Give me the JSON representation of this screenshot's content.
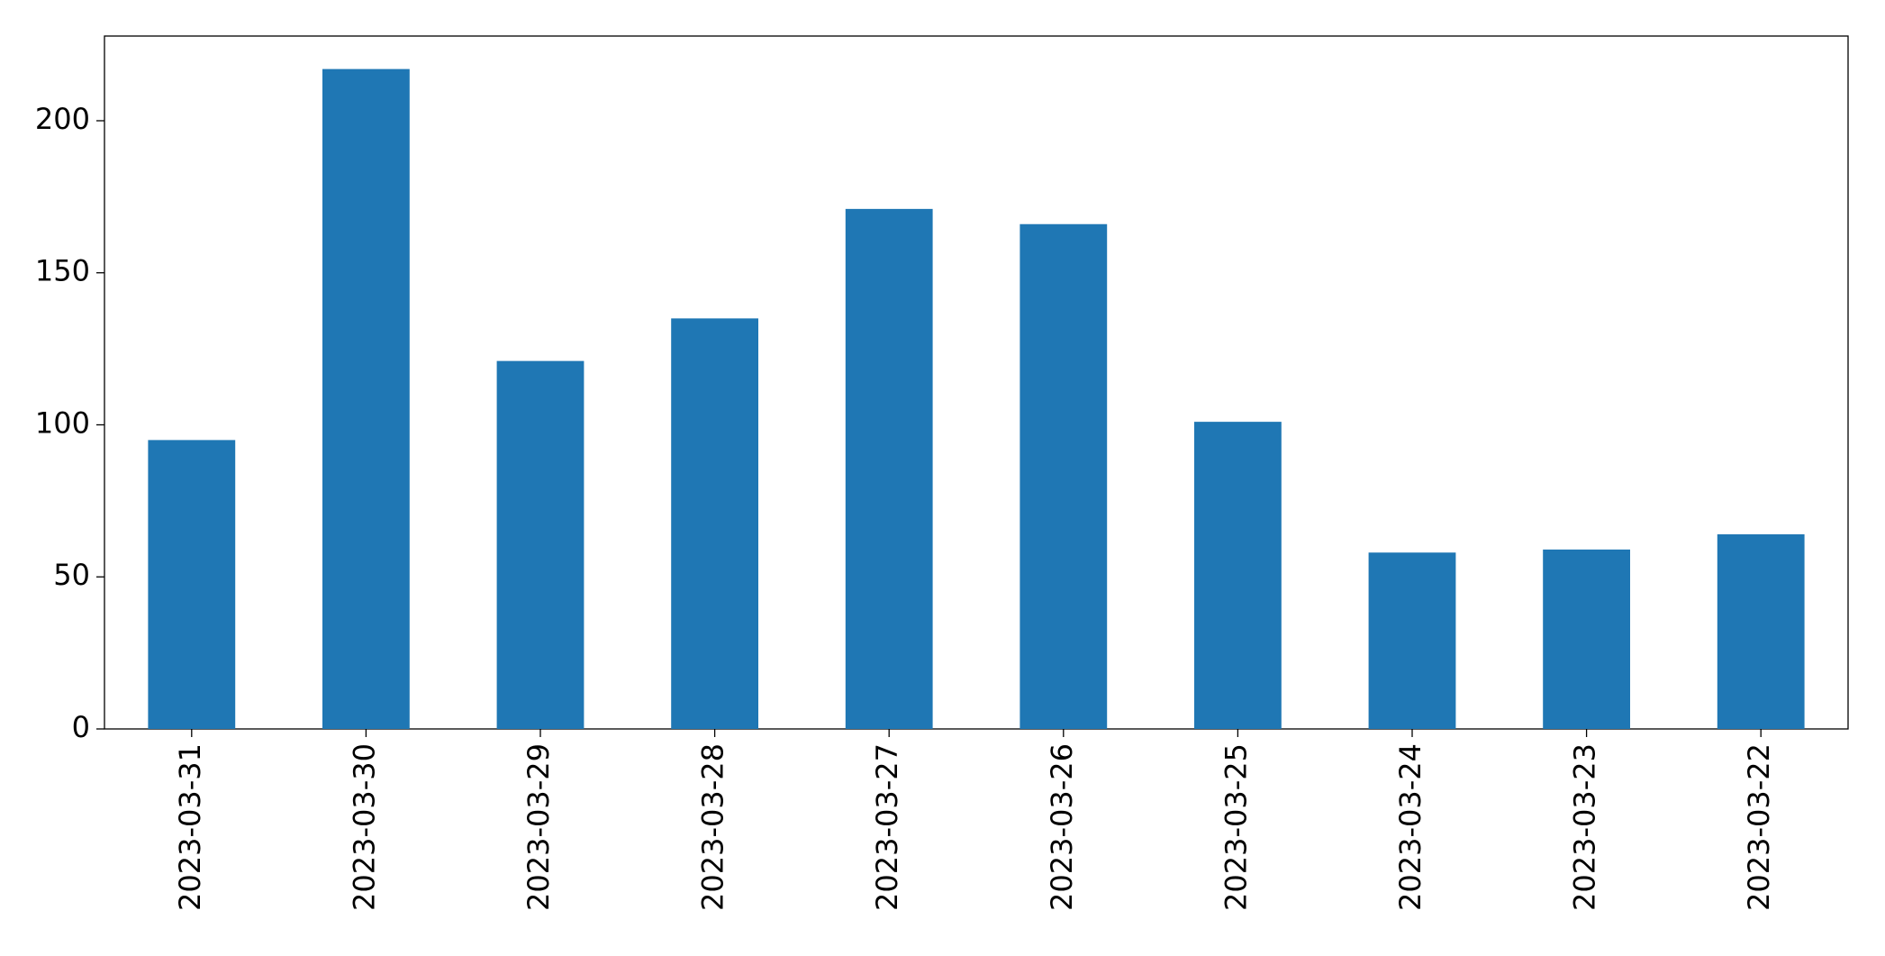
{
  "chart_data": {
    "type": "bar",
    "categories": [
      "2023-03-31",
      "2023-03-30",
      "2023-03-29",
      "2023-03-28",
      "2023-03-27",
      "2023-03-26",
      "2023-03-25",
      "2023-03-24",
      "2023-03-23",
      "2023-03-22"
    ],
    "values": [
      95,
      217,
      121,
      135,
      171,
      166,
      101,
      58,
      59,
      64
    ],
    "color": "#1f77b4",
    "ylim": [
      0,
      227.85
    ],
    "yticks": [
      0,
      50,
      100,
      150,
      200
    ],
    "grid": false
  }
}
